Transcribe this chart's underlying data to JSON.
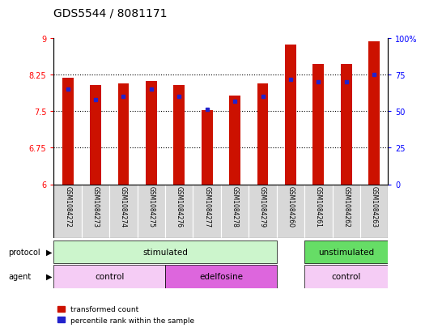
{
  "title": "GDS5544 / 8081171",
  "samples": [
    "GSM1084272",
    "GSM1084273",
    "GSM1084274",
    "GSM1084275",
    "GSM1084276",
    "GSM1084277",
    "GSM1084278",
    "GSM1084279",
    "GSM1084260",
    "GSM1084261",
    "GSM1084262",
    "GSM1084263"
  ],
  "transformed_count": [
    8.18,
    8.03,
    8.07,
    8.12,
    8.04,
    7.52,
    7.82,
    8.07,
    8.87,
    8.47,
    8.47,
    8.93
  ],
  "percentile_rank": [
    65,
    58,
    60,
    65,
    60,
    51,
    57,
    60,
    72,
    70,
    70,
    75
  ],
  "bar_color": "#cc1100",
  "blue_color": "#2222cc",
  "ylim_left": [
    6,
    9
  ],
  "ylim_right": [
    0,
    100
  ],
  "yticks_left": [
    6,
    6.75,
    7.5,
    8.25,
    9
  ],
  "yticks_right": [
    0,
    25,
    50,
    75,
    100
  ],
  "ytick_labels_right": [
    "0",
    "25",
    "50",
    "75",
    "100%"
  ],
  "grid_lines": [
    6.75,
    7.5,
    8.25
  ],
  "bar_width": 0.4,
  "title_fontsize": 10,
  "tick_fontsize": 7,
  "prot_regions": [
    {
      "label": "stimulated",
      "xstart": -0.5,
      "xend": 7.5,
      "color": "#ccf5cc"
    },
    {
      "label": "unstimulated",
      "xstart": 8.5,
      "xend": 11.5,
      "color": "#66dd66"
    }
  ],
  "agent_regions": [
    {
      "label": "control",
      "xstart": -0.5,
      "xend": 3.5,
      "color": "#f5ccf5"
    },
    {
      "label": "edelfosine",
      "xstart": 3.5,
      "xend": 7.5,
      "color": "#dd66dd"
    },
    {
      "label": "control",
      "xstart": 8.5,
      "xend": 11.5,
      "color": "#f5ccf5"
    }
  ],
  "legend_items": [
    "transformed count",
    "percentile rank within the sample"
  ],
  "bg_color": "#ffffff",
  "sample_bg_color": "#d8d8d8"
}
